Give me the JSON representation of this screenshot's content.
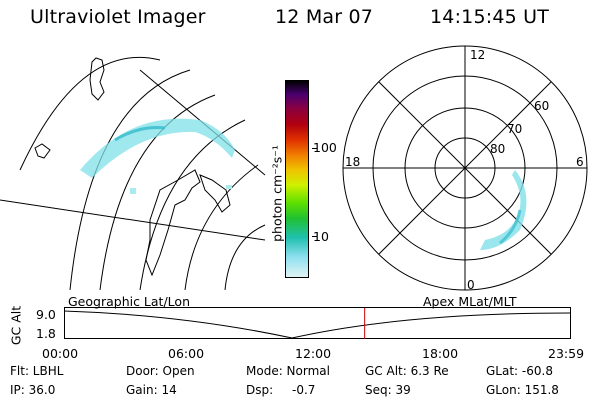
{
  "header": {
    "instrument": "Ultraviolet Imager",
    "date": "12 Mar 07",
    "time": "14:15:45 UT"
  },
  "colorbar": {
    "unit_label": "photon cm⁻²s⁻¹",
    "ticks": [
      "100",
      "10"
    ]
  },
  "polar_plot": {
    "mlt_labels": {
      "top": "12",
      "left": "18",
      "right": "6",
      "bottom": "0"
    },
    "lat_labels": [
      "60",
      "70",
      "80"
    ]
  },
  "timeline": {
    "axis_label": "GC Alt",
    "y_top": "9.0",
    "y_bottom": "1.8",
    "left_caption": "Geographic Lat/Lon",
    "right_caption": "Apex MLat/MLT",
    "x_ticks": [
      "00:00",
      "06:00",
      "12:00",
      "18:00",
      "23:59"
    ],
    "current_time_hours": 14.26
  },
  "info": {
    "flt": "Flt: LBHL",
    "ip": "IP: 36.0",
    "door": "Door: Open",
    "gain": "Gain: 14",
    "mode": "Mode: Normal",
    "dsp_label": "Dsp:",
    "dsp_value": "-0.7",
    "gc_alt": "GC Alt: 6.3 Re",
    "seq": "Seq: 39",
    "glat": "GLat: -60.8",
    "glon": "GLon: 151.8"
  },
  "colors": {
    "aurora": "#7fe0e8",
    "aurora_strong": "#35b9cc",
    "marker": "#cc0000"
  }
}
